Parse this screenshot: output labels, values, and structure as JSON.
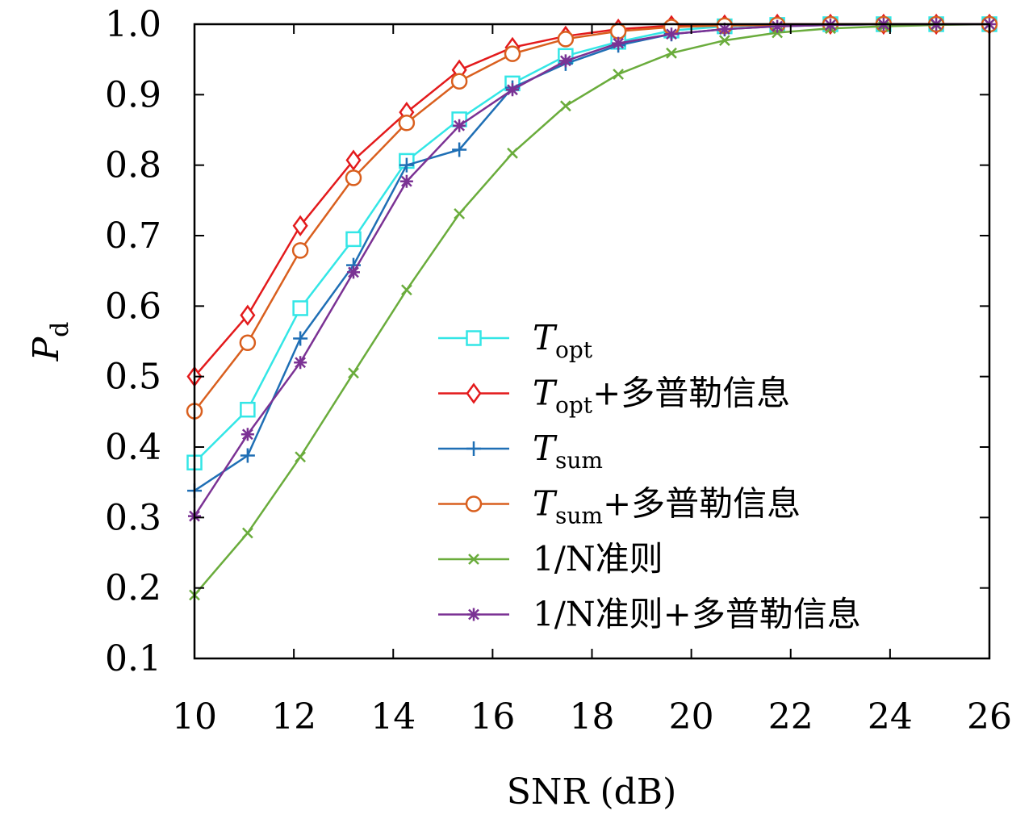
{
  "chart_data": {
    "type": "line",
    "title": "",
    "xlabel": "SNR (dB)",
    "ylabel": {
      "main": "P",
      "sub": "d"
    },
    "xlim": [
      10,
      26
    ],
    "ylim": [
      0.1,
      1.0
    ],
    "xticks": [
      10,
      12,
      14,
      16,
      18,
      20,
      22,
      24,
      26
    ],
    "yticks": [
      0.1,
      0.2,
      0.3,
      0.4,
      0.5,
      0.6,
      0.7,
      0.8,
      0.9,
      1.0
    ],
    "ytick_labels": [
      "0.1",
      "0.2",
      "0.3",
      "0.4",
      "0.5",
      "0.6",
      "0.7",
      "0.8",
      "0.9",
      "1.0"
    ],
    "grid": false,
    "legend_position": "lower-right",
    "x": [
      10,
      11.07,
      12.13,
      13.2,
      14.27,
      15.33,
      16.4,
      17.47,
      18.53,
      19.6,
      20.67,
      21.73,
      22.8,
      23.87,
      24.93,
      26
    ],
    "series": [
      {
        "name": "T_opt",
        "legend": {
          "main": "T",
          "sub": "opt",
          "suffix": ""
        },
        "color": "#33e6e6",
        "marker": "square",
        "values": [
          0.378,
          0.453,
          0.597,
          0.695,
          0.806,
          0.865,
          0.916,
          0.955,
          0.975,
          0.991,
          0.997,
          0.999,
          1.0,
          1.0,
          1.0,
          1.0
        ]
      },
      {
        "name": "T_opt+多普勒信息",
        "legend": {
          "main": "T",
          "sub": "opt",
          "suffix": "+多普勒信息"
        },
        "color": "#e31a1c",
        "marker": "diamond",
        "values": [
          0.5,
          0.587,
          0.714,
          0.807,
          0.875,
          0.935,
          0.967,
          0.983,
          0.993,
          0.998,
          0.999,
          1.0,
          1.0,
          1.0,
          1.0,
          1.0
        ]
      },
      {
        "name": "T_sum",
        "legend": {
          "main": "T",
          "sub": "sum",
          "suffix": ""
        },
        "color": "#1f6fb5",
        "marker": "plus",
        "values": [
          0.338,
          0.388,
          0.554,
          0.658,
          0.8,
          0.822,
          0.91,
          0.944,
          0.97,
          0.986,
          0.993,
          0.997,
          0.999,
          1.0,
          1.0,
          1.0
        ]
      },
      {
        "name": "T_sum+多普勒信息",
        "legend": {
          "main": "T",
          "sub": "sum",
          "suffix": "+多普勒信息"
        },
        "color": "#d95f1e",
        "marker": "circle",
        "values": [
          0.451,
          0.548,
          0.679,
          0.782,
          0.86,
          0.919,
          0.958,
          0.979,
          0.99,
          0.996,
          0.998,
          0.999,
          1.0,
          1.0,
          1.0,
          1.0
        ]
      },
      {
        "name": "1/N准则",
        "legend": {
          "main": "1/N准则",
          "sub": "",
          "suffix": ""
        },
        "color": "#6aac3c",
        "marker": "x",
        "values": [
          0.19,
          0.278,
          0.386,
          0.505,
          0.623,
          0.731,
          0.817,
          0.884,
          0.929,
          0.959,
          0.977,
          0.988,
          0.994,
          0.997,
          0.999,
          1.0
        ]
      },
      {
        "name": "1/N准则+多普勒信息",
        "legend": {
          "main": "1/N准则+多普勒信息",
          "sub": "",
          "suffix": ""
        },
        "color": "#7b3294",
        "marker": "asterisk",
        "values": [
          0.302,
          0.418,
          0.52,
          0.648,
          0.777,
          0.856,
          0.907,
          0.948,
          0.973,
          0.986,
          0.993,
          0.997,
          0.999,
          1.0,
          1.0,
          1.0
        ]
      }
    ]
  }
}
